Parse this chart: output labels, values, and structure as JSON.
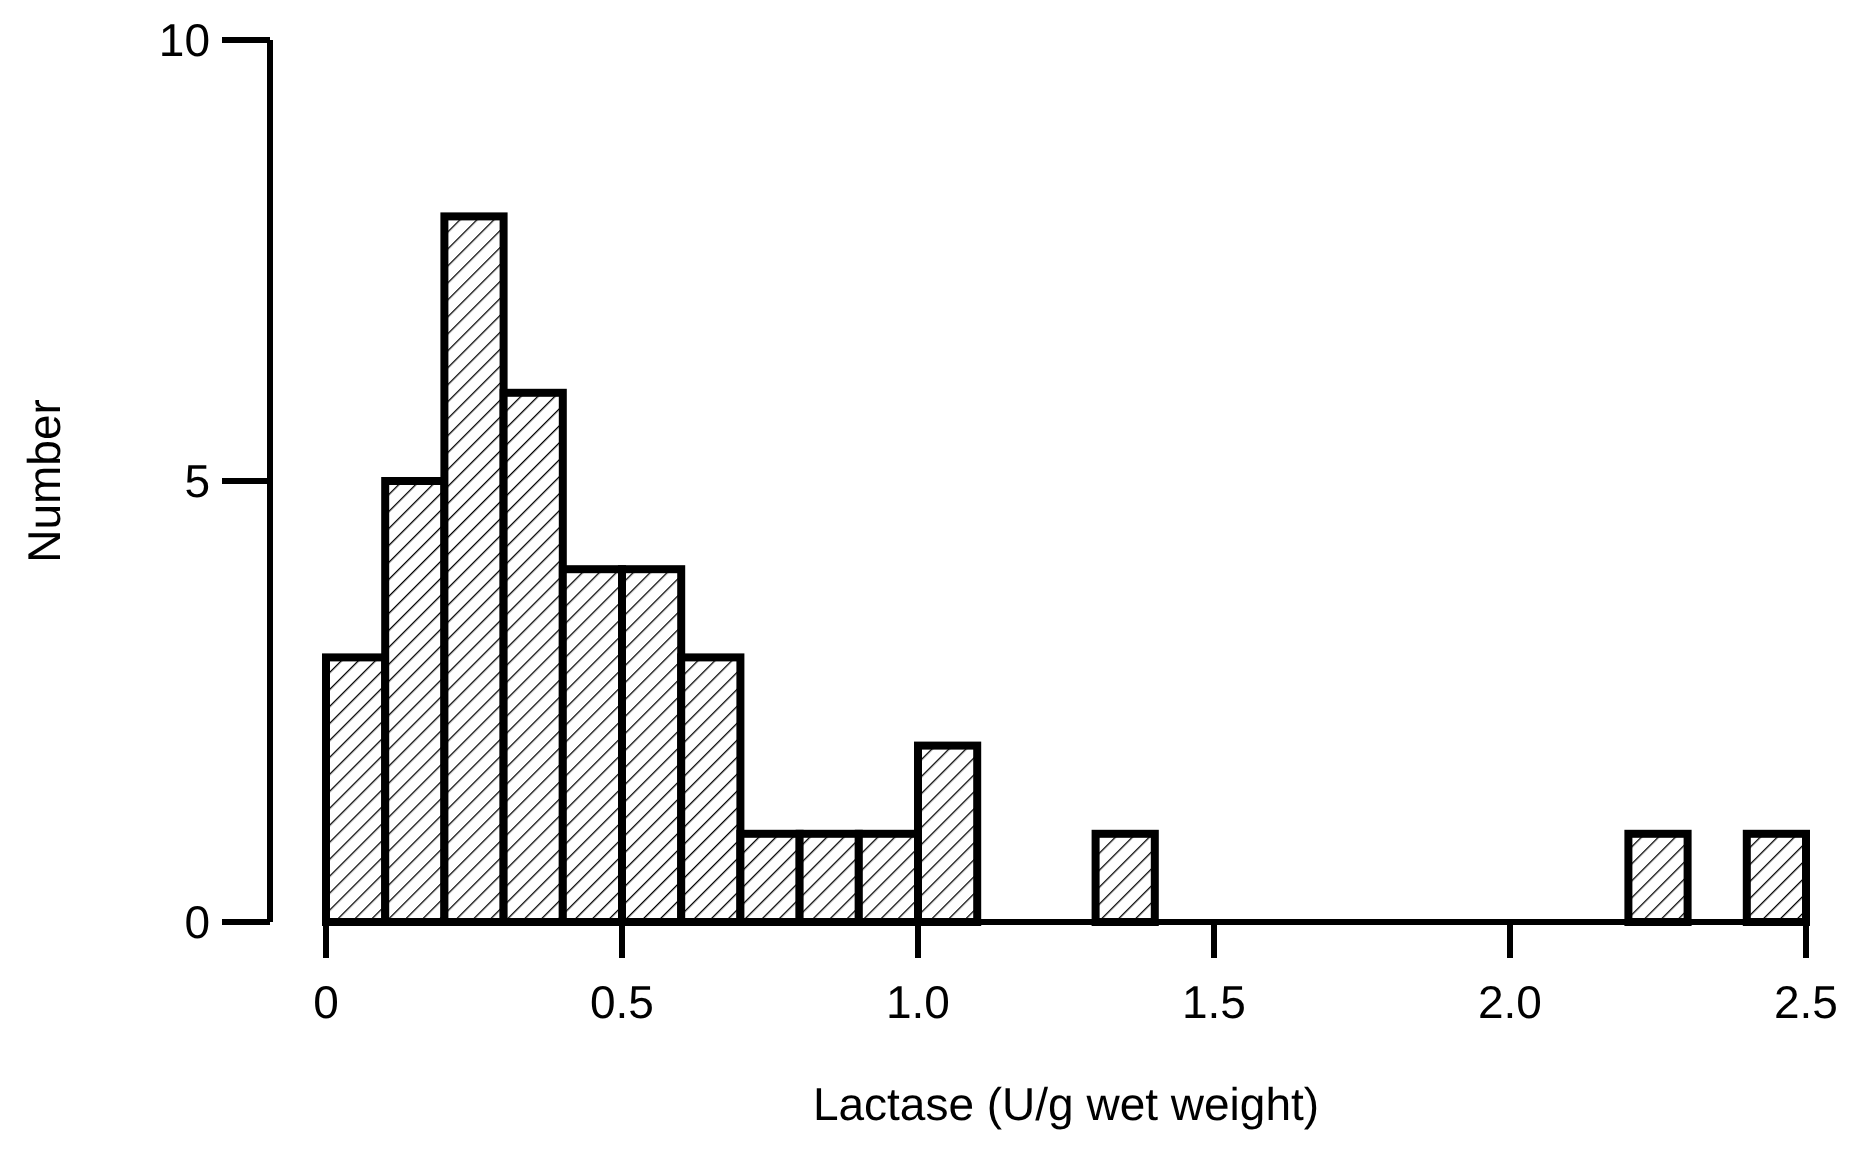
{
  "chart_data": {
    "type": "histogram",
    "xlabel": "Lactase (U/g wet weight)",
    "ylabel": "Number",
    "bins": [
      0,
      0.1,
      0.2,
      0.3,
      0.4,
      0.5,
      0.6,
      0.7,
      0.8,
      0.9,
      1.0,
      1.1,
      1.2,
      1.3,
      1.4,
      1.5,
      1.6,
      1.7,
      1.8,
      1.9,
      2.0,
      2.1,
      2.2,
      2.3,
      2.4,
      2.5
    ],
    "values": [
      3,
      5,
      8,
      6,
      4,
      4,
      3,
      1,
      1,
      1,
      2,
      0,
      0,
      1,
      0,
      0,
      0,
      0,
      0,
      0,
      0,
      0,
      1,
      0,
      1
    ],
    "color": "#000000",
    "xlim": [
      0,
      2.5
    ],
    "xticks": [
      0,
      0.5,
      {
        "value": 1,
        "label": "1.0"
      },
      1.5,
      {
        "value": 2,
        "label": "2.0"
      },
      2.5
    ],
    "ylim": [
      0,
      10
    ],
    "yticks": [
      0,
      5,
      10
    ],
    "grid": false
  }
}
